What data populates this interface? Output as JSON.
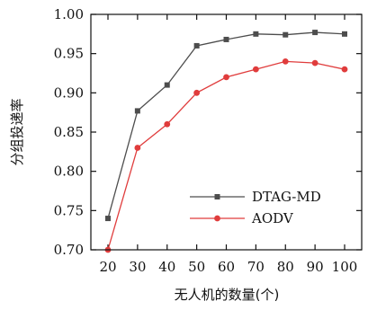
{
  "chart_data": {
    "type": "line",
    "title": "",
    "xlabel": "无人机的数量(个)",
    "ylabel": "分组投递率",
    "categories": [
      "20",
      "30",
      "40",
      "50",
      "60",
      "70",
      "80",
      "90",
      "100"
    ],
    "x": [
      20,
      30,
      40,
      50,
      60,
      70,
      80,
      90,
      100
    ],
    "xlim": [
      20,
      100
    ],
    "ylim": [
      0.7,
      1.0
    ],
    "yticks": [
      "0.70",
      "0.75",
      "0.80",
      "0.85",
      "0.90",
      "0.95",
      "1.00"
    ],
    "grid": false,
    "legend_position": "bottom-right",
    "series": [
      {
        "name": "DTAG-MD",
        "color": "#4d4d4d",
        "marker": "square",
        "values": [
          0.74,
          0.877,
          0.91,
          0.96,
          0.968,
          0.975,
          0.974,
          0.977,
          0.975
        ]
      },
      {
        "name": "AODV",
        "color": "#e03c3c",
        "marker": "circle",
        "values": [
          0.7,
          0.83,
          0.86,
          0.9,
          0.92,
          0.93,
          0.94,
          0.938,
          0.93
        ]
      }
    ]
  }
}
